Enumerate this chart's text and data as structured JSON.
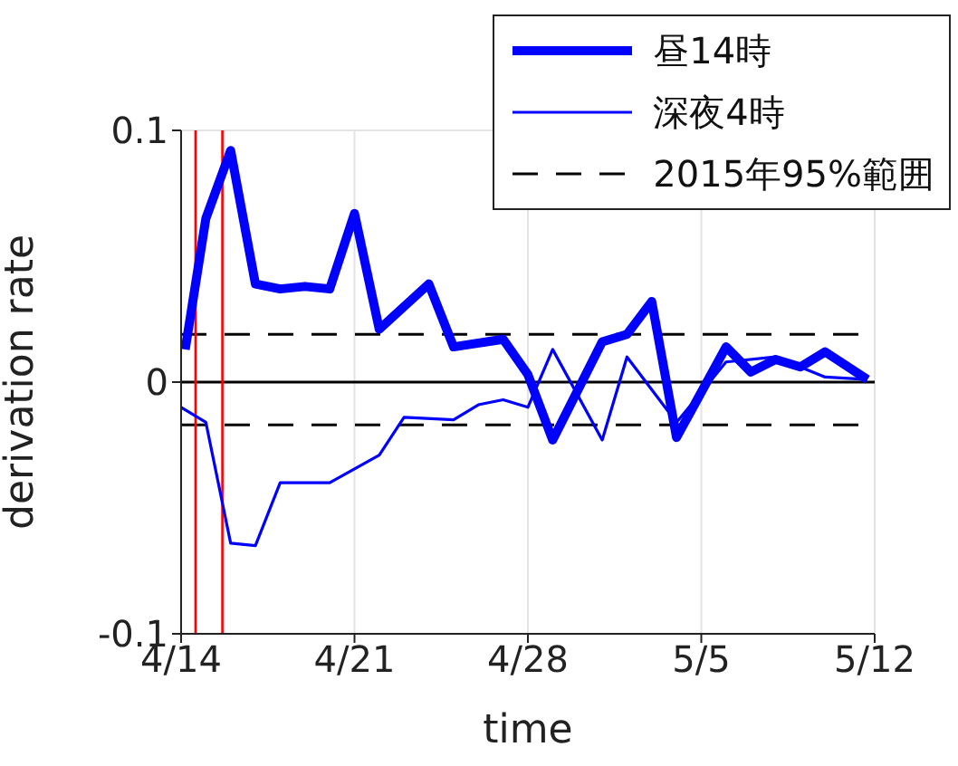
{
  "chart_data": {
    "type": "line",
    "xlabel": "time",
    "ylabel": "derivation rate",
    "xlim": [
      "--04-14",
      "--05-12"
    ],
    "xticks": [
      {
        "value": "--04-14",
        "label": "4/14"
      },
      {
        "value": "--04-21",
        "label": "4/21"
      },
      {
        "value": "--04-28",
        "label": "4/28"
      },
      {
        "value": "--05-05",
        "label": "5/5"
      },
      {
        "value": "--05-12",
        "label": "5/12"
      }
    ],
    "ylim": [
      -0.1,
      0.1
    ],
    "yticks": [
      -0.1,
      0,
      0.1
    ],
    "grid": true,
    "legend": "top right",
    "line_style": "solid",
    "marker": "none",
    "series": [
      {
        "name": "昼14時",
        "color": "#0000ff",
        "x": [
          "--04-14T04:00",
          "--04-15",
          "--04-16",
          "--04-17",
          "--04-18",
          "--04-19",
          "--04-20",
          "--04-21",
          "--04-22",
          "--04-24",
          "--04-25",
          "--04-27",
          "--04-28",
          "--04-29",
          "--05-01",
          "--05-02",
          "--05-03",
          "--05-04",
          "--05-06",
          "--05-07",
          "--05-08",
          "--05-09",
          "--05-10",
          "--05-11T17:00"
        ],
        "values": [
          0.013,
          0.065,
          0.092,
          0.039,
          0.037,
          0.038,
          0.037,
          0.067,
          0.021,
          0.039,
          0.014,
          0.017,
          0.003,
          -0.023,
          0.016,
          0.019,
          0.032,
          -0.022,
          0.014,
          0.004,
          0.009,
          0.006,
          0.012,
          0.001
        ]
      },
      {
        "name": "深夜4時",
        "color": "#0000ff",
        "x": [
          "--04-14",
          "--04-15",
          "--04-16",
          "--04-17",
          "--04-18",
          "--04-20",
          "--04-22",
          "--04-23",
          "--04-25",
          "--04-26",
          "--04-27",
          "--04-28",
          "--04-29",
          "--05-01",
          "--05-02",
          "--05-04",
          "--05-06",
          "--05-08",
          "--05-10",
          "--05-11T17:00"
        ],
        "values": [
          -0.01,
          -0.016,
          -0.064,
          -0.065,
          -0.04,
          -0.04,
          -0.029,
          -0.014,
          -0.015,
          -0.009,
          -0.007,
          -0.01,
          0.013,
          -0.023,
          0.01,
          -0.016,
          0.008,
          0.01,
          0.002,
          0.001
        ]
      }
    ],
    "ref_lines": [
      {
        "axis": "y",
        "value": 0,
        "color": "#000000"
      },
      {
        "axis": "y",
        "value": 0.019,
        "color": "#000000",
        "line_style": "dashed",
        "label": "2015年95%範囲"
      },
      {
        "axis": "y",
        "value": -0.017,
        "color": "#000000",
        "line_style": "dashed"
      },
      {
        "axis": "x",
        "value": "--04-14T14:00",
        "color": "#ff0000"
      },
      {
        "axis": "x",
        "value": "--04-15T16:00",
        "color": "#ff0000"
      }
    ]
  }
}
